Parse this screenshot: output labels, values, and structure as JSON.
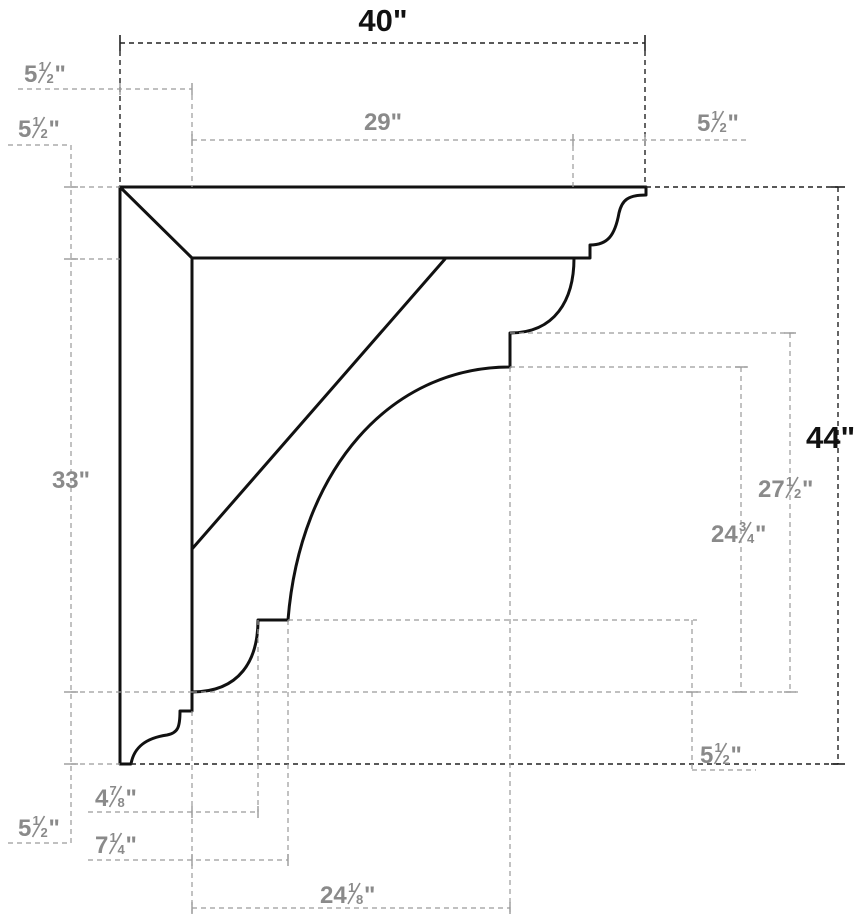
{
  "dimensions": {
    "overall_width": "40\"",
    "overall_height": "44\"",
    "top_overhang_left": {
      "whole": "5",
      "num": "1",
      "den": "2",
      "unit": "\""
    },
    "left_overhang_top": {
      "whole": "5",
      "num": "1",
      "den": "2",
      "unit": "\""
    },
    "top_span": "29\"",
    "top_overhang_right": {
      "whole": "5",
      "num": "1",
      "den": "2",
      "unit": "\""
    },
    "vertical_span": "33\"",
    "height_27_5": {
      "whole": "27",
      "num": "1",
      "den": "2",
      "unit": "\""
    },
    "height_24_75": {
      "whole": "24",
      "num": "3",
      "den": "4",
      "unit": "\""
    },
    "right_bottom_offset": {
      "whole": "5",
      "num": "1",
      "den": "2",
      "unit": "\""
    },
    "width_4_875": {
      "whole": "4",
      "num": "7",
      "den": "8",
      "unit": "\""
    },
    "bottom_overhang_left": {
      "whole": "5",
      "num": "1",
      "den": "2",
      "unit": "\""
    },
    "width_7_25": {
      "whole": "7",
      "num": "1",
      "den": "4",
      "unit": "\""
    },
    "width_24_125": {
      "whole": "24",
      "num": "1",
      "den": "8",
      "unit": "\""
    }
  },
  "colors": {
    "outline": "#111111",
    "main_dimension": "#111111",
    "secondary_dimension": "#8a8a8a"
  }
}
